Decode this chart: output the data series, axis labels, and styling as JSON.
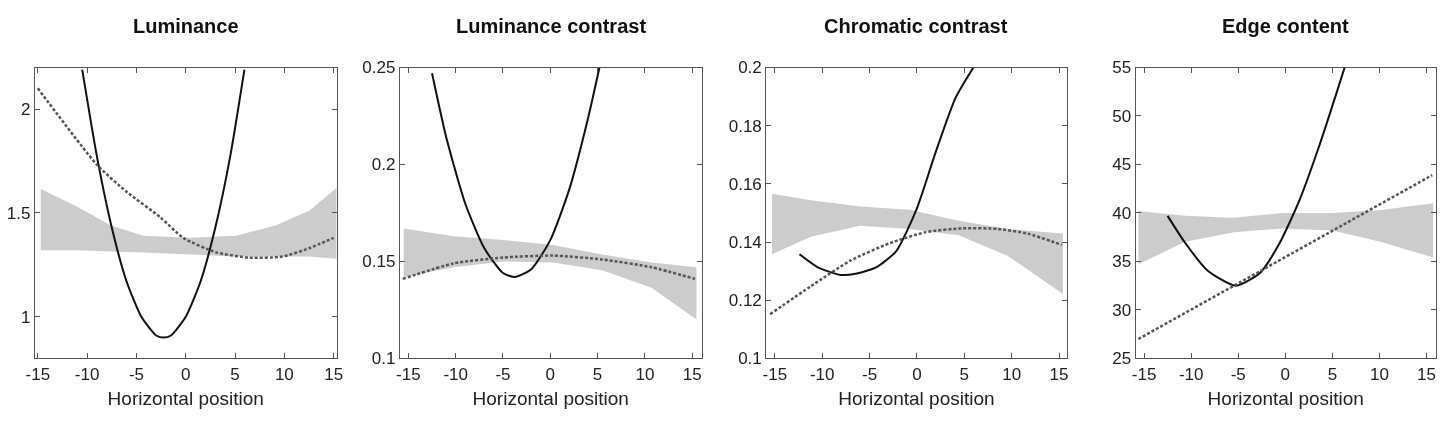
{
  "chart_data": [
    {
      "type": "line",
      "title": "Luminance",
      "xlabel": "Horizontal position",
      "xlim": [
        -15.3,
        15.3
      ],
      "xticks": [
        -15,
        -10,
        -5,
        0,
        5,
        10,
        15
      ],
      "ylim": [
        0.8,
        2.2
      ],
      "yticks": [
        1,
        1.5,
        2
      ],
      "series": [
        {
          "color": "#111111",
          "line_style": "solid",
          "x": [
            -10.5,
            -9,
            -7.5,
            -6,
            -4.5,
            -3,
            -2.26,
            -1.5,
            0,
            1.5,
            3,
            4.5,
            5.95
          ],
          "values": [
            2.19,
            1.77,
            1.43,
            1.17,
            1.0,
            0.91,
            0.9,
            0.91,
            1.0,
            1.17,
            1.43,
            1.77,
            2.19
          ]
        },
        {
          "color": "#555555",
          "line_style": "dotted",
          "x": [
            -15,
            -8.97,
            -5.95,
            -2.6,
            -0.25,
            3.1,
            6.45,
            9.8,
            12.5,
            15
          ],
          "values": [
            2.1,
            1.73,
            1.6,
            1.48,
            1.38,
            1.31,
            1.285,
            1.29,
            1.33,
            1.38
          ]
        },
        {
          "color": "#cccccc",
          "x": [
            -14.7,
            -11,
            -7.6,
            -4.3,
            0.4,
            5.1,
            9.1,
            12.5,
            15.3
          ],
          "values": [
            null,
            null,
            null,
            null,
            null,
            null,
            null,
            null,
            null
          ],
          "lower": [
            1.32,
            1.32,
            1.315,
            1.31,
            1.3,
            1.29,
            1.29,
            1.29,
            1.28
          ],
          "upper": [
            1.615,
            1.53,
            1.44,
            1.39,
            1.38,
            1.39,
            1.44,
            1.51,
            1.62
          ]
        }
      ]
    },
    {
      "type": "line",
      "title": "Luminance contrast",
      "xlabel": "Horizontal position",
      "xlim": [
        -15.9,
        16
      ],
      "xticks": [
        -15,
        -10,
        -5,
        0,
        5,
        10,
        15
      ],
      "ylim": [
        0.1,
        0.25
      ],
      "yticks": [
        0.1,
        0.15,
        0.2,
        0.25
      ],
      "series": [
        {
          "color": "#111111",
          "line_style": "solid",
          "x": [
            -12.5,
            -11,
            -9,
            -7,
            -5,
            -3.7,
            -2,
            0,
            2,
            4,
            5.2
          ],
          "values": [
            0.247,
            0.214,
            0.18,
            0.157,
            0.144,
            0.142,
            0.146,
            0.161,
            0.187,
            0.224,
            0.25
          ]
        },
        {
          "color": "#555555",
          "line_style": "dotted",
          "x": [
            -15.6,
            -10.2,
            -4.95,
            0.28,
            5.5,
            10.7,
            15.3
          ],
          "values": [
            0.141,
            0.149,
            0.152,
            0.153,
            0.151,
            0.147,
            0.141
          ]
        },
        {
          "color": "#cccccc",
          "x": [
            -15.5,
            -10.2,
            -4.95,
            0.28,
            5.5,
            10.7,
            15.45
          ],
          "values": [
            null,
            null,
            null,
            null,
            null,
            null,
            null
          ],
          "lower": [
            0.142,
            0.147,
            0.15,
            0.1495,
            0.1454,
            0.1364,
            0.12
          ],
          "upper": [
            0.167,
            0.163,
            0.161,
            0.1585,
            0.1536,
            0.1495,
            0.147
          ]
        }
      ]
    },
    {
      "type": "line",
      "title": "Chromatic contrast",
      "xlabel": "Horizontal position",
      "xlim": [
        -15.9,
        15.8
      ],
      "xticks": [
        -15,
        -10,
        -5,
        0,
        5,
        10,
        15
      ],
      "ylim": [
        0.1,
        0.2
      ],
      "yticks": [
        0.1,
        0.12,
        0.14,
        0.16,
        0.18,
        0.2
      ],
      "series": [
        {
          "color": "#111111",
          "line_style": "solid",
          "x": [
            -12.4,
            -10.5,
            -8.07,
            -6.34,
            -4.26,
            -2.18,
            0,
            1.97,
            4.05,
            5.96
          ],
          "values": [
            0.1358,
            0.1314,
            0.1287,
            0.1292,
            0.1314,
            0.1369,
            0.1516,
            0.1708,
            0.1894,
            0.2
          ]
        },
        {
          "color": "#555555",
          "line_style": "dotted",
          "x": [
            -15.5,
            -11.2,
            -7.03,
            -2.87,
            0.94,
            4.75,
            8.56,
            11.67,
            15.3
          ],
          "values": [
            0.1152,
            0.1248,
            0.1336,
            0.1396,
            0.1434,
            0.1447,
            0.1445,
            0.1429,
            0.139
          ]
        },
        {
          "color": "#cccccc",
          "x": [
            -15.3,
            -11.2,
            -6,
            -0.8,
            4.4,
            9.6,
            15.4
          ],
          "values": [
            null,
            null,
            null,
            null,
            null,
            null,
            null
          ],
          "lower": [
            0.1358,
            0.1418,
            0.1456,
            0.1445,
            0.1423,
            0.1352,
            0.1221
          ],
          "upper": [
            0.1566,
            0.1544,
            0.1522,
            0.1511,
            0.1473,
            0.1445,
            0.1429
          ]
        }
      ]
    },
    {
      "type": "line",
      "title": "Edge content",
      "xlabel": "Horizontal position",
      "xlim": [
        -15.9,
        16
      ],
      "xticks": [
        -15,
        -10,
        -5,
        0,
        5,
        10,
        15
      ],
      "ylim": [
        25,
        55
      ],
      "yticks": [
        25,
        30,
        35,
        40,
        45,
        50,
        55
      ],
      "series": [
        {
          "color": "#111111",
          "line_style": "solid",
          "x": [
            -12.5,
            -10.7,
            -8.3,
            -5.3,
            -2.7,
            -0.6,
            1.5,
            3.6,
            5.35,
            6.3
          ],
          "values": [
            39.7,
            37.0,
            34.1,
            32.5,
            33.8,
            36.9,
            41.3,
            46.9,
            52.1,
            55
          ]
        },
        {
          "color": "#555555",
          "line_style": "dotted",
          "x": [
            -15.6,
            15.6
          ],
          "values": [
            27.0,
            43.9
          ]
        },
        {
          "color": "#cccccc",
          "x": [
            -15.6,
            -10.7,
            -5.5,
            -0.2,
            5,
            10.2,
            15.7
          ],
          "values": [
            null,
            null,
            null,
            null,
            null,
            null,
            null
          ],
          "lower": [
            34.7,
            37.0,
            38.0,
            38.4,
            38.2,
            37.0,
            35.4
          ],
          "upper": [
            40.2,
            39.7,
            39.5,
            40.0,
            40.0,
            40.3,
            41.0
          ]
        }
      ]
    }
  ]
}
